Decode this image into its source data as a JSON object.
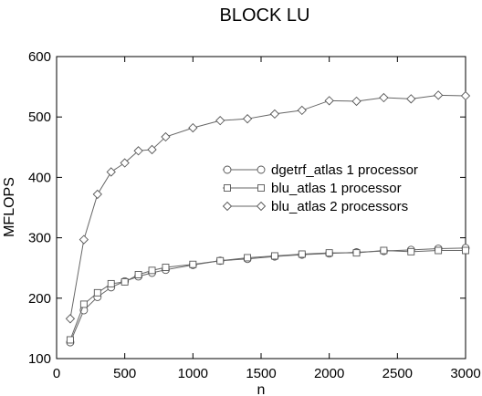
{
  "chart_data": {
    "type": "line",
    "title": "BLOCK LU",
    "xlabel": "n",
    "ylabel": "MFLOPS",
    "xlim": [
      0,
      3000
    ],
    "ylim": [
      100,
      600
    ],
    "xticks": [
      0,
      500,
      1000,
      1500,
      2000,
      2500,
      3000
    ],
    "yticks": [
      100,
      200,
      300,
      400,
      500,
      600
    ],
    "xtick_labels": [
      "0",
      "500",
      "1000",
      "1500",
      "2000",
      "2500",
      "3000"
    ],
    "ytick_labels": [
      "100",
      "200",
      "300",
      "400",
      "500",
      "600"
    ],
    "grid": false,
    "legend_position": "center-right",
    "series": [
      {
        "name": "dgetrf_atlas 1 processor",
        "marker": "circle",
        "x": [
          100,
          200,
          300,
          400,
          500,
          600,
          700,
          800,
          1000,
          1200,
          1400,
          1600,
          1800,
          2000,
          2200,
          2400,
          2600,
          2800,
          3000
        ],
        "y": [
          127,
          180,
          202,
          218,
          228,
          236,
          242,
          247,
          255,
          262,
          265,
          269,
          272,
          274,
          276,
          278,
          280,
          282,
          283
        ]
      },
      {
        "name": "blu_atlas 1 processor",
        "marker": "square",
        "x": [
          100,
          200,
          300,
          400,
          500,
          600,
          700,
          800,
          1000,
          1200,
          1400,
          1600,
          1800,
          2000,
          2200,
          2400,
          2600,
          2800,
          3000
        ],
        "y": [
          131,
          190,
          209,
          224,
          227,
          239,
          246,
          251,
          256,
          262,
          267,
          270,
          273,
          275,
          275,
          279,
          277,
          279,
          279
        ]
      },
      {
        "name": "blu_atlas 2 processors",
        "marker": "diamond",
        "x": [
          100,
          200,
          300,
          400,
          500,
          600,
          700,
          800,
          1000,
          1200,
          1400,
          1600,
          1800,
          2000,
          2200,
          2400,
          2600,
          2800,
          3000
        ],
        "y": [
          166,
          297,
          372,
          409,
          424,
          444,
          446,
          467,
          482,
          494,
          497,
          505,
          511,
          527,
          526,
          532,
          530,
          536,
          535
        ]
      }
    ]
  }
}
